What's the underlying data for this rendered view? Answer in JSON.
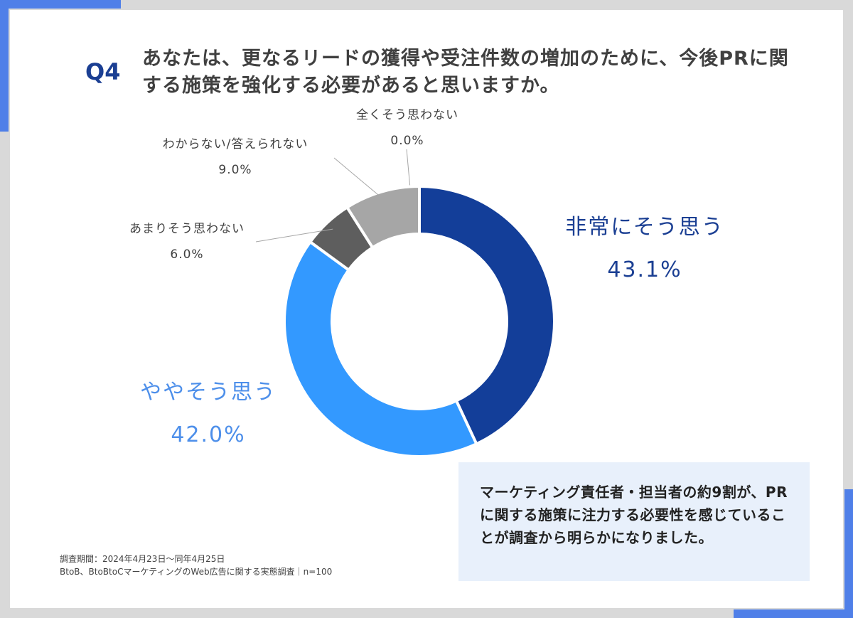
{
  "header": {
    "qnum": "Q4",
    "question": "あなたは、更なるリードの獲得や受注件数の増加のために、今後PRに関する施策を強化する必要があると思いますか。"
  },
  "colors": {
    "accent": "#4f7fe8",
    "slice_very": "#133e99",
    "slice_somewhat": "#3399ff",
    "slice_not_much": "#5e5e5e",
    "slice_not_at_all": "#404040",
    "slice_dont_know": "#a6a6a6"
  },
  "chart_data": {
    "type": "pie",
    "donut": true,
    "categories": [
      "非常にそう思う",
      "ややそう思う",
      "あまりそう思わない",
      "全くそう思わない",
      "わからない/答えられない"
    ],
    "values": [
      43.1,
      42.0,
      6.0,
      0.0,
      9.0
    ],
    "value_labels": [
      "43.1%",
      "42.0%",
      "6.0%",
      "0.0%",
      "9.0%"
    ],
    "start_angle_deg": 0,
    "direction": "clockwise"
  },
  "callout": {
    "text": "マーケティング責任者・担当者の約9割が、PRに関する施策に注力する必要性を感じていることが調査から明らかになりました。"
  },
  "footnote": {
    "period": "調査期間：2024年4月23日～同年4月25日",
    "survey": "BtoB、BtoBtoCマーケティングのWeb広告に関する実態調査｜n=100"
  }
}
